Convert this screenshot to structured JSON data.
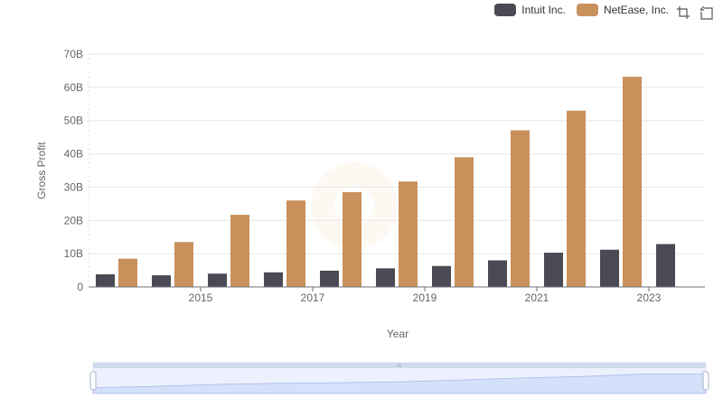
{
  "legend": {
    "items": [
      {
        "name": "Intuit Inc.",
        "color": "#4a4a55"
      },
      {
        "name": "NetEase, Inc.",
        "color": "#c8915c"
      }
    ]
  },
  "toolbox": {
    "zoom_icon": "zoom-area-icon",
    "restore_icon": "restore-icon"
  },
  "zoom_handle_label": "III",
  "chart_data": {
    "type": "bar",
    "title": "",
    "xlabel": "Year",
    "ylabel": "Gross Profit",
    "categories": [
      "2014",
      "2015",
      "2016",
      "2017",
      "2018",
      "2019",
      "2020",
      "2021",
      "2022",
      "2023",
      "2024"
    ],
    "x_tick_labels": [
      "2015",
      "2017",
      "2019",
      "2021",
      "2023"
    ],
    "y_tick_labels": [
      "0",
      "10B",
      "20B",
      "30B",
      "40B",
      "50B",
      "60B",
      "70B"
    ],
    "ylim": [
      0,
      70
    ],
    "y_unit": "B",
    "series": [
      {
        "name": "Intuit Inc.",
        "color": "#4a4a55",
        "values": [
          3.8,
          3.5,
          4.0,
          4.4,
          4.9,
          5.6,
          6.3,
          8.0,
          10.3,
          11.2,
          12.9
        ]
      },
      {
        "name": "NetEase, Inc.",
        "color": "#c8915c",
        "values": [
          8.5,
          13.5,
          21.7,
          26.0,
          28.5,
          31.7,
          39.0,
          47.1,
          53.0,
          63.2,
          null
        ]
      }
    ]
  }
}
